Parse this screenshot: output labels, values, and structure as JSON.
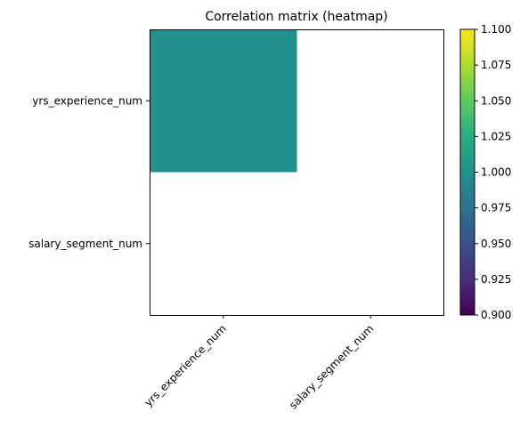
{
  "chart_data": {
    "type": "heatmap",
    "title": "Correlation matrix (heatmap)",
    "xlabel": "",
    "ylabel": "",
    "x_categories": [
      "yrs_experience_num",
      "salary_segment_num"
    ],
    "y_categories": [
      "yrs_experience_num",
      "salary_segment_num"
    ],
    "values": [
      [
        1.0,
        null
      ],
      [
        null,
        null
      ]
    ],
    "colormap": "viridis",
    "color_range": [
      0.9,
      1.1
    ],
    "colorbar_ticks": [
      "0.900",
      "0.925",
      "0.950",
      "0.975",
      "1.000",
      "1.025",
      "1.050",
      "1.075",
      "1.100"
    ],
    "x_tick_rotation_deg": 45,
    "grid": false
  }
}
